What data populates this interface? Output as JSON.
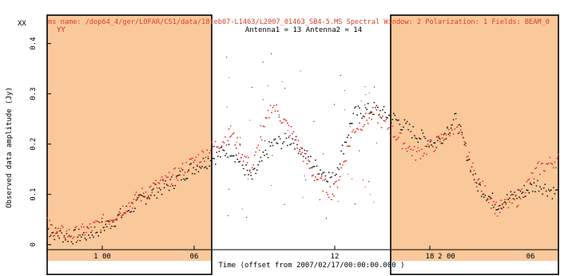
{
  "header": {
    "title_line1": "ms name: /dop64_4/ger/LOFAR/CS1/data/18feb07-L1463/L2007_01463_SB4-5.MS Spectral Window: 2 Polarization: 1 Fields: BEAM_0",
    "title_line2": "Antenna1 = 13 Antenna2 = 14",
    "legend_xx": "XX",
    "legend_yy": "YY"
  },
  "colors": {
    "xx": "#1a1a1a",
    "yy": "#e8291c",
    "flag_region": "#f9c89b",
    "title": "#d9402c"
  },
  "chart_data": {
    "type": "scatter",
    "title": "",
    "xlabel": "Time (offset from  2007/02/17/00:00:00.000 )",
    "ylabel": "Observed data amplitude (Jy)",
    "xlim": [
      19.0,
      31.5
    ],
    "ylim": [
      -0.01,
      0.42
    ],
    "xticks": [
      {
        "value": 22,
        "label": "1 00"
      },
      {
        "value": 24,
        "label": "06"
      },
      {
        "value": 28,
        "label": "12"
      },
      {
        "value": 30,
        "label": "18"
      }
    ],
    "xticks_second": [
      {
        "value": 20.0,
        "label": "2 00",
        "panel": "right"
      },
      {
        "value": 22.0,
        "label": "06",
        "panel": "right"
      }
    ],
    "yticks": [
      0,
      0.1,
      0.2,
      0.3,
      0.4
    ],
    "highlighted_ranges": [
      "left shaded block",
      "right shaded block"
    ],
    "series": [
      {
        "name": "XX",
        "x": [
          0.0,
          0.02,
          0.05,
          0.08,
          0.12,
          0.16,
          0.2,
          0.24,
          0.28,
          0.32,
          0.36,
          0.4,
          0.44,
          0.48,
          0.52,
          0.56,
          0.6,
          0.64,
          0.68,
          0.72,
          0.76,
          0.8,
          0.84,
          0.88,
          0.92,
          0.96,
          1.0
        ],
        "values": [
          0.03,
          0.02,
          0.015,
          0.02,
          0.04,
          0.07,
          0.1,
          0.12,
          0.15,
          0.17,
          0.19,
          0.13,
          0.2,
          0.21,
          0.16,
          0.13,
          0.26,
          0.27,
          0.25,
          0.22,
          0.2,
          0.25,
          0.12,
          0.08,
          0.1,
          0.12,
          0.1
        ]
      },
      {
        "name": "YY",
        "x": [
          0.0,
          0.02,
          0.05,
          0.08,
          0.12,
          0.16,
          0.2,
          0.24,
          0.28,
          0.32,
          0.36,
          0.4,
          0.44,
          0.48,
          0.52,
          0.56,
          0.6,
          0.64,
          0.68,
          0.72,
          0.76,
          0.8,
          0.84,
          0.88,
          0.92,
          0.96,
          1.0
        ],
        "values": [
          0.04,
          0.025,
          0.02,
          0.03,
          0.05,
          0.08,
          0.11,
          0.13,
          0.16,
          0.19,
          0.22,
          0.15,
          0.28,
          0.22,
          0.14,
          0.1,
          0.23,
          0.26,
          0.22,
          0.18,
          0.2,
          0.24,
          0.13,
          0.07,
          0.09,
          0.15,
          0.17
        ]
      }
    ]
  }
}
